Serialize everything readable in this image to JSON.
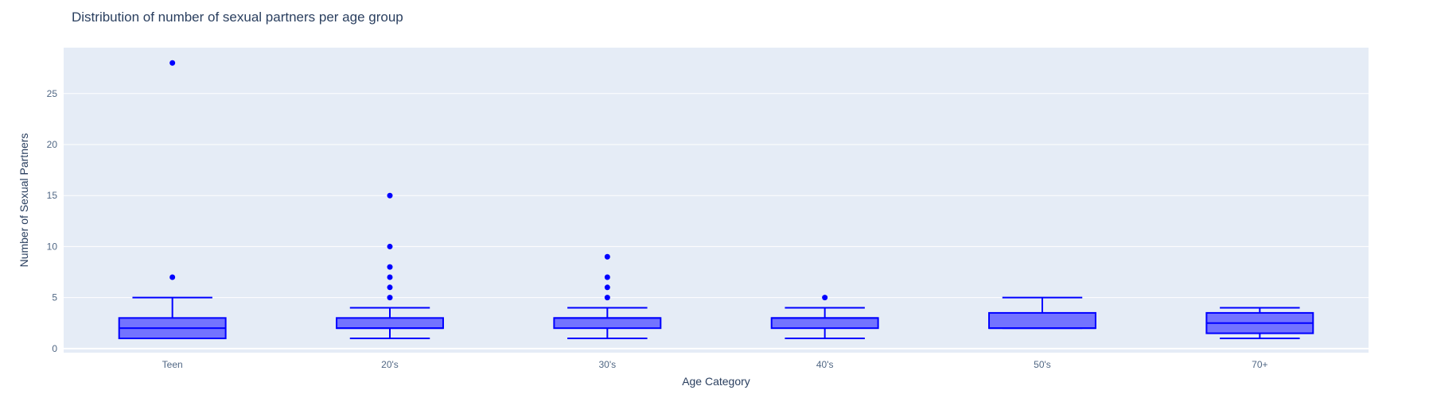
{
  "chart_data": {
    "type": "box",
    "title": "Distribution of number of sexual partners per age group",
    "xlabel": "Age Category",
    "ylabel": "Number of Sexual Partners",
    "categories": [
      "Teen",
      "20's",
      "30's",
      "40's",
      "50's",
      "70+"
    ],
    "yticks": [
      "0",
      "5",
      "10",
      "15",
      "20",
      "25"
    ],
    "ylim": [
      -0.4,
      29.5
    ],
    "grid": true,
    "boxes": [
      {
        "category": "Teen",
        "lowerfence": 1,
        "q1": 1,
        "median": 2,
        "q3": 3,
        "upperfence": 5,
        "outliers": [
          7,
          28
        ]
      },
      {
        "category": "20's",
        "lowerfence": 1,
        "q1": 2,
        "median": 2,
        "q3": 3,
        "upperfence": 4,
        "outliers": [
          5,
          6,
          7,
          8,
          10,
          15
        ]
      },
      {
        "category": "30's",
        "lowerfence": 1,
        "q1": 2,
        "median": 3,
        "q3": 3,
        "upperfence": 4,
        "outliers": [
          5,
          6,
          7,
          9
        ]
      },
      {
        "category": "40's",
        "lowerfence": 1,
        "q1": 2,
        "median": 3,
        "q3": 3,
        "upperfence": 4,
        "outliers": [
          5
        ]
      },
      {
        "category": "50's",
        "lowerfence": 2,
        "q1": 2,
        "median": 2,
        "q3": 3.5,
        "upperfence": 5,
        "outliers": []
      },
      {
        "category": "70+",
        "lowerfence": 1,
        "q1": 1.5,
        "median": 2.5,
        "q3": 3.5,
        "upperfence": 4,
        "outliers": []
      }
    ],
    "colors": {
      "plot_bg": "#e5ecf6",
      "grid": "#ffffff",
      "box_stroke": "#0000ff",
      "box_fill": "#7373ff",
      "text": "#2a3f5f",
      "tick_text": "#506784"
    }
  }
}
